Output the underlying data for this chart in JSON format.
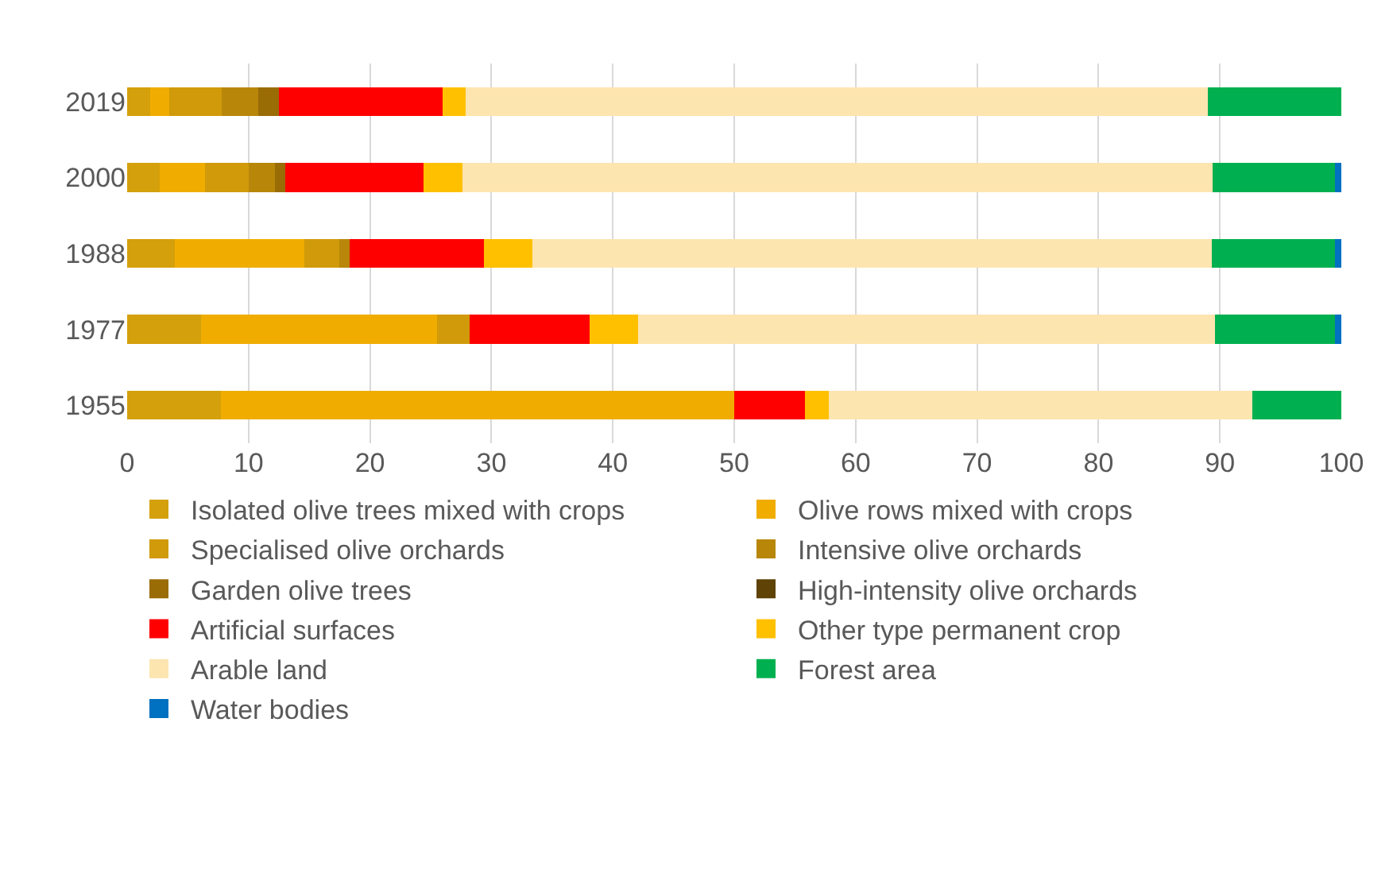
{
  "chart_data": {
    "type": "bar",
    "orientation": "horizontal",
    "stacked": true,
    "categories": [
      "2019",
      "2000",
      "1988",
      "1977",
      "1955"
    ],
    "xlim": [
      0,
      100
    ],
    "xticks": [
      0,
      10,
      20,
      30,
      40,
      50,
      60,
      70,
      80,
      90,
      100
    ],
    "grid": "x",
    "legend": "bottom",
    "series": [
      {
        "name": "Isolated olive trees mixed with crops",
        "color": "#d4a00c",
        "values": [
          1.9,
          2.7,
          3.9,
          6.1,
          7.7
        ]
      },
      {
        "name": "Olive rows mixed with crops",
        "color": "#f0ad00",
        "values": [
          1.6,
          3.7,
          10.7,
          19.4,
          42.3
        ]
      },
      {
        "name": "Specialised olive orchards",
        "color": "#d09a0a",
        "values": [
          4.3,
          3.6,
          2.9,
          2.7,
          0
        ]
      },
      {
        "name": "Intensive olive orchards",
        "color": "#b8870a",
        "values": [
          3.0,
          2.2,
          0.8,
          0,
          0
        ]
      },
      {
        "name": "Garden olive trees",
        "color": "#9a6c06",
        "values": [
          1.7,
          0.8,
          0,
          0,
          0
        ]
      },
      {
        "name": "High-intensity olive orchards",
        "color": "#5e4206",
        "values": [
          0,
          0,
          0,
          0,
          0
        ]
      },
      {
        "name": "Artificial surfaces",
        "color": "#ff0000",
        "values": [
          13.5,
          11.4,
          11.1,
          9.9,
          5.8
        ]
      },
      {
        "name": "Other type permanent crop",
        "color": "#ffc000",
        "values": [
          1.9,
          3.2,
          4.0,
          4.0,
          2.0
        ]
      },
      {
        "name": "Arable land",
        "color": "#fde5b0",
        "values": [
          61.1,
          61.8,
          55.9,
          47.5,
          34.9
        ]
      },
      {
        "name": "Forest area",
        "color": "#00b050",
        "values": [
          11.0,
          10.1,
          10.2,
          9.9,
          7.3
        ]
      },
      {
        "name": "Water bodies",
        "color": "#0070c0",
        "values": [
          0,
          0.5,
          0.5,
          0.5,
          0
        ]
      }
    ]
  }
}
